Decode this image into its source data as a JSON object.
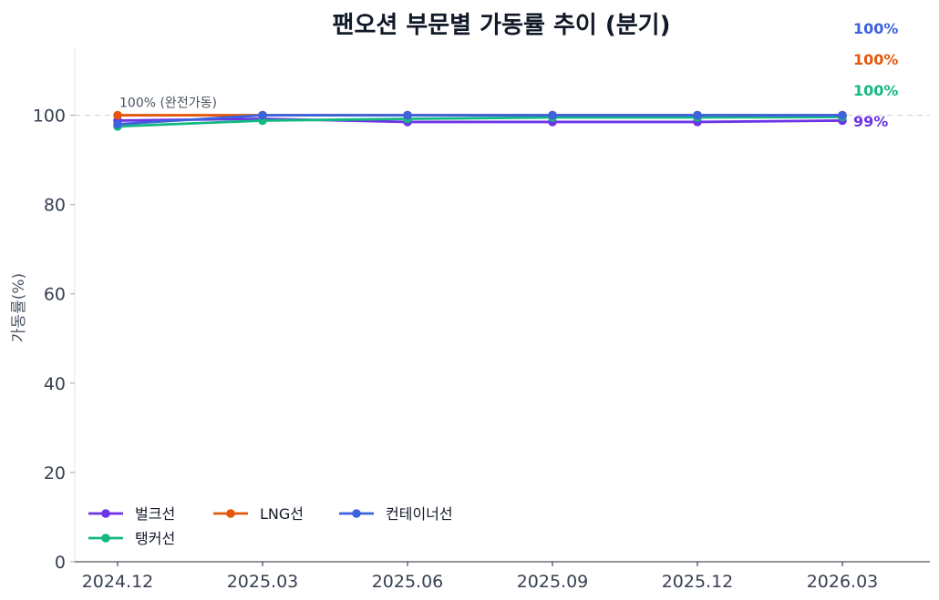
{
  "chart_data": {
    "type": "line",
    "title": "팬오션 부문별 가동률 추이 (분기)",
    "xlabel": "",
    "ylabel": "가동률(%)",
    "ylim": [
      0,
      115
    ],
    "yticks": [
      0,
      20,
      40,
      60,
      80,
      100
    ],
    "categories": [
      "2024.12",
      "2025.03",
      "2025.06",
      "2025.09",
      "2025.12",
      "2026.03"
    ],
    "series": [
      {
        "name": "벌크선",
        "color": "#6d33e6",
        "values": [
          98.8,
          99.2,
          98.5,
          98.5,
          98.5,
          98.8
        ],
        "end_label": "99%"
      },
      {
        "name": "탱커선",
        "color": "#14b882",
        "values": [
          97.5,
          98.8,
          99.2,
          99.5,
          99.5,
          99.6
        ],
        "end_label": "100%"
      },
      {
        "name": "LNG선",
        "color": "#e4570c",
        "values": [
          100,
          100,
          100,
          100,
          100,
          100
        ],
        "end_label": "100%"
      },
      {
        "name": "컨테이너선",
        "color": "#3c62dd",
        "values": [
          98.0,
          100,
          100,
          100,
          100,
          100
        ],
        "end_label": "100%"
      }
    ],
    "reference_line": {
      "value": 100,
      "label": "100% (완전가동)"
    },
    "grid": false,
    "legend": "bottom-left",
    "end_label_order": [
      "컨테이너선",
      "LNG선",
      "탱커선",
      "벌크선"
    ]
  }
}
